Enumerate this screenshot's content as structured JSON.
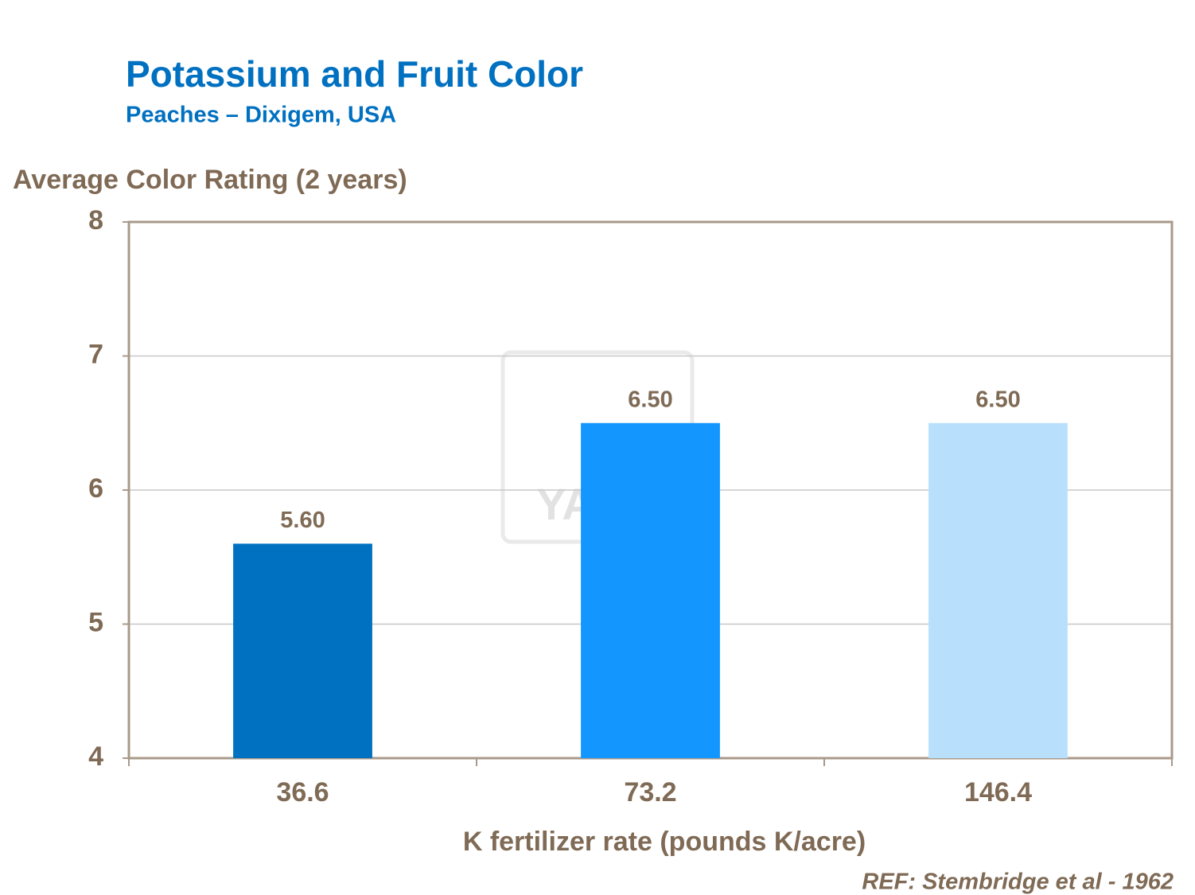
{
  "chart_data": {
    "type": "bar",
    "title": "Potassium and Fruit Color",
    "subtitle": "Peaches – Dixigem, USA",
    "y_label": "Average Color Rating (2 years)",
    "x_label": "K fertilizer rate (pounds K/acre)",
    "note": "REF:  Stembridge et al - 1962",
    "watermark": "YARA",
    "categories": [
      "36.6",
      "73.2",
      "146.4"
    ],
    "values": [
      5.6,
      6.5,
      6.5
    ],
    "value_labels": [
      "5.60",
      "6.50",
      "6.50"
    ],
    "colors": [
      "#0070c0",
      "#1496ff",
      "#b8e0fc"
    ],
    "ylim": [
      4,
      8
    ],
    "yticks": [
      4,
      5,
      6,
      7,
      8
    ],
    "grid": true
  }
}
